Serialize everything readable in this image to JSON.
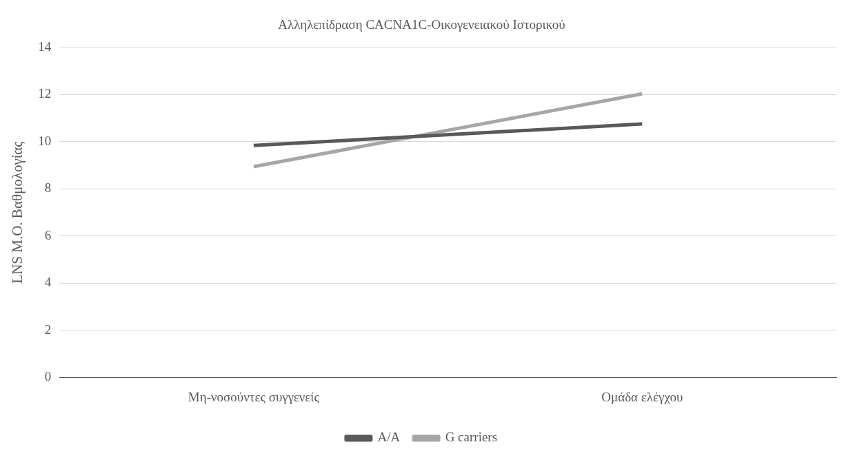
{
  "chart_data": {
    "type": "line",
    "title": "Αλληλεπίδραση CACNA1C-Οικογενειακού Ιστορικού",
    "ylabel": "LNS Μ.Ο. Βαθμολογίας",
    "categories": [
      "Μη-νοσούντες συγγενείς",
      "Ομάδα ελέγχου"
    ],
    "series": [
      {
        "name": "A/A",
        "color": "#595959",
        "values": [
          9.84,
          10.75
        ]
      },
      {
        "name": "G carriers",
        "color": "#a6a6a6",
        "values": [
          8.94,
          12.03
        ]
      }
    ],
    "ylim": [
      0,
      14
    ],
    "yticks": [
      0,
      2,
      4,
      6,
      8,
      10,
      12,
      14
    ],
    "grid": "y",
    "legend": "bottom",
    "marker": "none",
    "line_style": "solid"
  }
}
